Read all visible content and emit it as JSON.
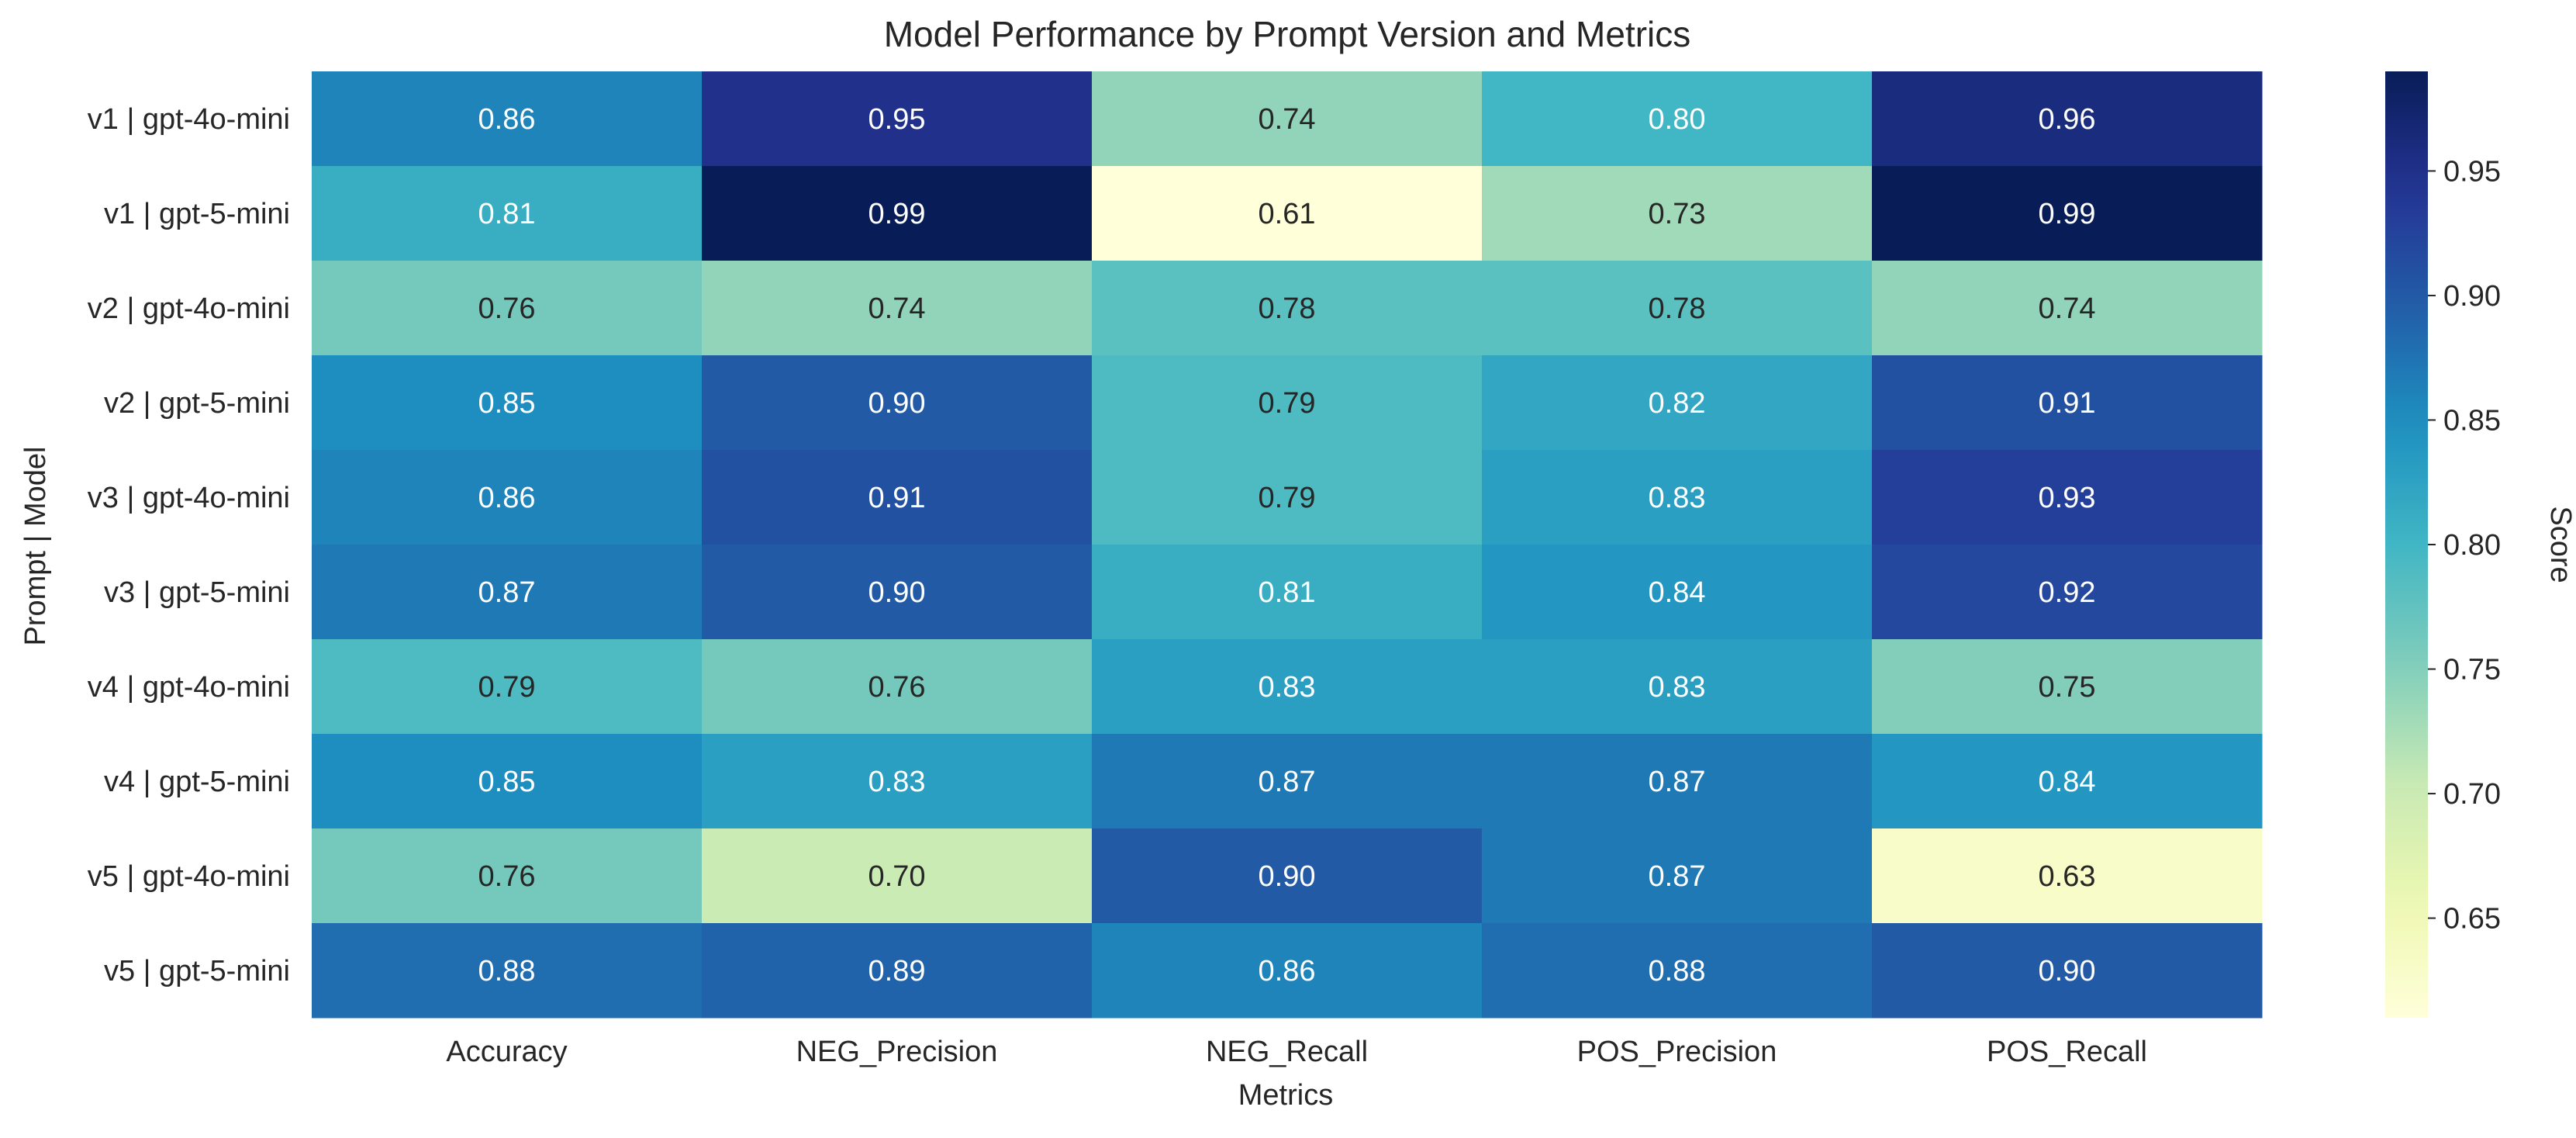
{
  "chart_data": {
    "type": "heatmap",
    "title": "Model Performance by Prompt Version and Metrics",
    "xlabel": "Metrics",
    "ylabel": "Prompt | Model",
    "x_categories": [
      "Accuracy",
      "NEG_Precision",
      "NEG_Recall",
      "POS_Precision",
      "POS_Recall"
    ],
    "y_categories": [
      "v1 | gpt-4o-mini",
      "v1 | gpt-5-mini",
      "v2 | gpt-4o-mini",
      "v2 | gpt-5-mini",
      "v3 | gpt-4o-mini",
      "v3 | gpt-5-mini",
      "v4 | gpt-4o-mini",
      "v4 | gpt-5-mini",
      "v5 | gpt-4o-mini",
      "v5 | gpt-5-mini"
    ],
    "values": [
      [
        0.86,
        0.95,
        0.74,
        0.8,
        0.96
      ],
      [
        0.81,
        0.99,
        0.61,
        0.73,
        0.99
      ],
      [
        0.76,
        0.74,
        0.78,
        0.78,
        0.74
      ],
      [
        0.85,
        0.9,
        0.79,
        0.82,
        0.91
      ],
      [
        0.86,
        0.91,
        0.79,
        0.83,
        0.93
      ],
      [
        0.87,
        0.9,
        0.81,
        0.84,
        0.92
      ],
      [
        0.79,
        0.76,
        0.83,
        0.83,
        0.75
      ],
      [
        0.85,
        0.83,
        0.87,
        0.87,
        0.84
      ],
      [
        0.76,
        0.7,
        0.9,
        0.87,
        0.63
      ],
      [
        0.88,
        0.89,
        0.86,
        0.88,
        0.9
      ]
    ],
    "colorbar": {
      "label": "Score",
      "colormap": "YlGnBu",
      "range": [
        0.61,
        0.99
      ],
      "ticks": [
        0.65,
        0.7,
        0.75,
        0.8,
        0.85,
        0.9,
        0.95
      ],
      "tick_labels": [
        "0.65",
        "0.70",
        "0.75",
        "0.80",
        "0.85",
        "0.90",
        "0.95"
      ]
    },
    "annotation_format": "2 decimals",
    "grid": false,
    "legend": "colorbar-right"
  }
}
